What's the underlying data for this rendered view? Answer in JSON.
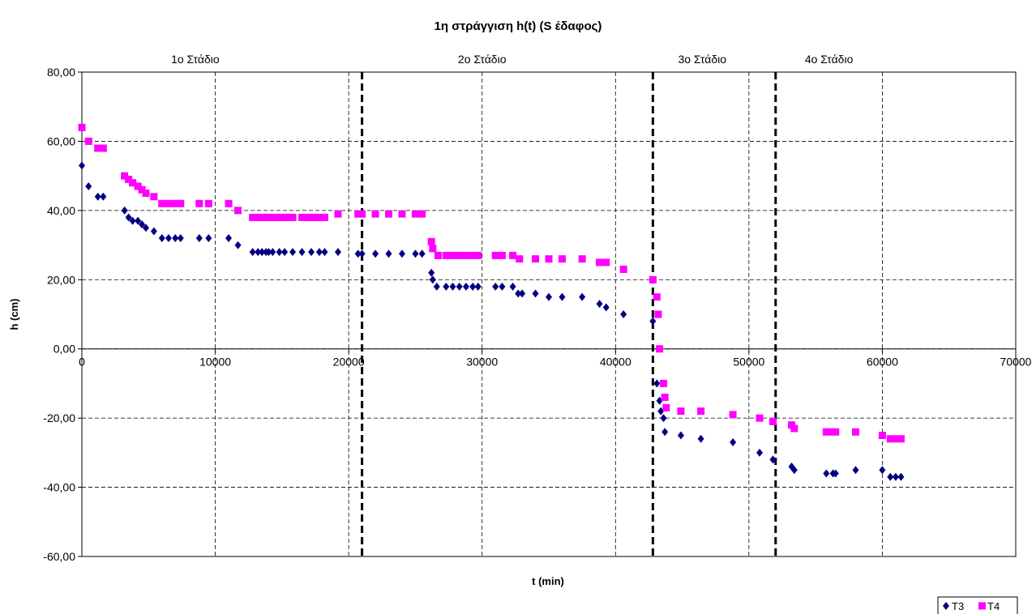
{
  "chart_data": {
    "type": "scatter",
    "title": "1η στράγγιση h(t) (S έδαφος)",
    "xlabel": "t (min)",
    "ylabel": "h (cm)",
    "xlim": [
      0,
      70000
    ],
    "ylim": [
      -60,
      80
    ],
    "xticks": [
      "0",
      "10000",
      "20000",
      "30000",
      "40000",
      "50000",
      "60000",
      "70000"
    ],
    "yticks": [
      "80,00",
      "60,00",
      "40,00",
      "20,00",
      "0,00",
      "-20,00",
      "-40,00",
      "-60,00"
    ],
    "grid": true,
    "legend_position": "bottom-right",
    "stage_labels": [
      "1ο Στάδιο",
      "2ο Στάδιο",
      "3ο Στάδιο",
      "4ο Στάδιο"
    ],
    "stage_label_x": [
      8500,
      30000,
      46500,
      56000
    ],
    "stage_boundaries": [
      21000,
      42800,
      52000
    ],
    "series": [
      {
        "name": "T3",
        "color": "#000080",
        "marker": "diamond",
        "points": [
          [
            0,
            53
          ],
          [
            500,
            47
          ],
          [
            1200,
            44
          ],
          [
            1600,
            44
          ],
          [
            3200,
            40
          ],
          [
            3500,
            38
          ],
          [
            3800,
            37
          ],
          [
            4200,
            37
          ],
          [
            4500,
            36
          ],
          [
            4800,
            35
          ],
          [
            5400,
            34
          ],
          [
            6000,
            32
          ],
          [
            6500,
            32
          ],
          [
            7000,
            32
          ],
          [
            7400,
            32
          ],
          [
            8800,
            32
          ],
          [
            9500,
            32
          ],
          [
            11000,
            32
          ],
          [
            11700,
            30
          ],
          [
            12800,
            28
          ],
          [
            13200,
            28
          ],
          [
            13500,
            28
          ],
          [
            13800,
            28
          ],
          [
            14000,
            28
          ],
          [
            14300,
            28
          ],
          [
            14800,
            28
          ],
          [
            15200,
            28
          ],
          [
            15800,
            28
          ],
          [
            16500,
            28
          ],
          [
            17200,
            28
          ],
          [
            17800,
            28
          ],
          [
            18200,
            28
          ],
          [
            19200,
            28
          ],
          [
            20700,
            27.5
          ],
          [
            21000,
            27.5
          ],
          [
            22000,
            27.5
          ],
          [
            23000,
            27.5
          ],
          [
            24000,
            27.5
          ],
          [
            25000,
            27.5
          ],
          [
            25500,
            27.5
          ],
          [
            26200,
            22
          ],
          [
            26300,
            20
          ],
          [
            26600,
            18
          ],
          [
            27300,
            18
          ],
          [
            27800,
            18
          ],
          [
            28300,
            18
          ],
          [
            28800,
            18
          ],
          [
            29300,
            18
          ],
          [
            29700,
            18
          ],
          [
            31000,
            18
          ],
          [
            31500,
            18
          ],
          [
            32300,
            18
          ],
          [
            32700,
            16
          ],
          [
            33000,
            16
          ],
          [
            34000,
            16
          ],
          [
            35000,
            15
          ],
          [
            36000,
            15
          ],
          [
            37500,
            15
          ],
          [
            38800,
            13
          ],
          [
            39300,
            12
          ],
          [
            40600,
            10
          ],
          [
            42800,
            8
          ],
          [
            43100,
            -10
          ],
          [
            43300,
            -15
          ],
          [
            43400,
            -18
          ],
          [
            43600,
            -20
          ],
          [
            43700,
            -24
          ],
          [
            44900,
            -25
          ],
          [
            46400,
            -26
          ],
          [
            48800,
            -27
          ],
          [
            50800,
            -30
          ],
          [
            51800,
            -32
          ],
          [
            53200,
            -34
          ],
          [
            53400,
            -35
          ],
          [
            55800,
            -36
          ],
          [
            56300,
            -36
          ],
          [
            56500,
            -36
          ],
          [
            58000,
            -35
          ],
          [
            60000,
            -35
          ],
          [
            60600,
            -37
          ],
          [
            61000,
            -37
          ],
          [
            61400,
            -37
          ]
        ]
      },
      {
        "name": "T4",
        "color": "#ff00ff",
        "marker": "square",
        "points": [
          [
            0,
            64
          ],
          [
            500,
            60
          ],
          [
            1200,
            58
          ],
          [
            1600,
            58
          ],
          [
            3200,
            50
          ],
          [
            3500,
            49
          ],
          [
            3800,
            48
          ],
          [
            4200,
            47
          ],
          [
            4500,
            46
          ],
          [
            4800,
            45
          ],
          [
            5400,
            44
          ],
          [
            6000,
            42
          ],
          [
            6500,
            42
          ],
          [
            7000,
            42
          ],
          [
            7400,
            42
          ],
          [
            8800,
            42
          ],
          [
            9500,
            42
          ],
          [
            11000,
            42
          ],
          [
            11700,
            40
          ],
          [
            12800,
            38
          ],
          [
            13200,
            38
          ],
          [
            13500,
            38
          ],
          [
            13800,
            38
          ],
          [
            14000,
            38
          ],
          [
            14300,
            38
          ],
          [
            14600,
            38
          ],
          [
            14900,
            38
          ],
          [
            15200,
            38
          ],
          [
            15500,
            38
          ],
          [
            15800,
            38
          ],
          [
            16500,
            38
          ],
          [
            16900,
            38
          ],
          [
            17200,
            38
          ],
          [
            17500,
            38
          ],
          [
            17800,
            38
          ],
          [
            18200,
            38
          ],
          [
            19200,
            39
          ],
          [
            20700,
            39
          ],
          [
            21000,
            39
          ],
          [
            22000,
            39
          ],
          [
            23000,
            39
          ],
          [
            24000,
            39
          ],
          [
            25000,
            39
          ],
          [
            25500,
            39
          ],
          [
            26200,
            31
          ],
          [
            26300,
            29
          ],
          [
            26700,
            27
          ],
          [
            27300,
            27
          ],
          [
            27800,
            27
          ],
          [
            28300,
            27
          ],
          [
            28800,
            27
          ],
          [
            29300,
            27
          ],
          [
            29700,
            27
          ],
          [
            31000,
            27
          ],
          [
            31500,
            27
          ],
          [
            32300,
            27
          ],
          [
            32800,
            26
          ],
          [
            34000,
            26
          ],
          [
            35000,
            26
          ],
          [
            36000,
            26
          ],
          [
            37500,
            26
          ],
          [
            38800,
            25
          ],
          [
            39300,
            25
          ],
          [
            40600,
            23
          ],
          [
            42800,
            20
          ],
          [
            43100,
            15
          ],
          [
            43200,
            10
          ],
          [
            43300,
            0
          ],
          [
            43600,
            -10
          ],
          [
            43700,
            -14
          ],
          [
            43800,
            -17
          ],
          [
            44900,
            -18
          ],
          [
            46400,
            -18
          ],
          [
            48800,
            -19
          ],
          [
            50800,
            -20
          ],
          [
            51800,
            -21
          ],
          [
            53200,
            -22
          ],
          [
            53400,
            -23
          ],
          [
            55800,
            -24
          ],
          [
            56100,
            -24
          ],
          [
            56500,
            -24
          ],
          [
            58000,
            -24
          ],
          [
            60000,
            -25
          ],
          [
            60600,
            -26
          ],
          [
            61000,
            -26
          ],
          [
            61400,
            -26
          ]
        ]
      }
    ]
  }
}
